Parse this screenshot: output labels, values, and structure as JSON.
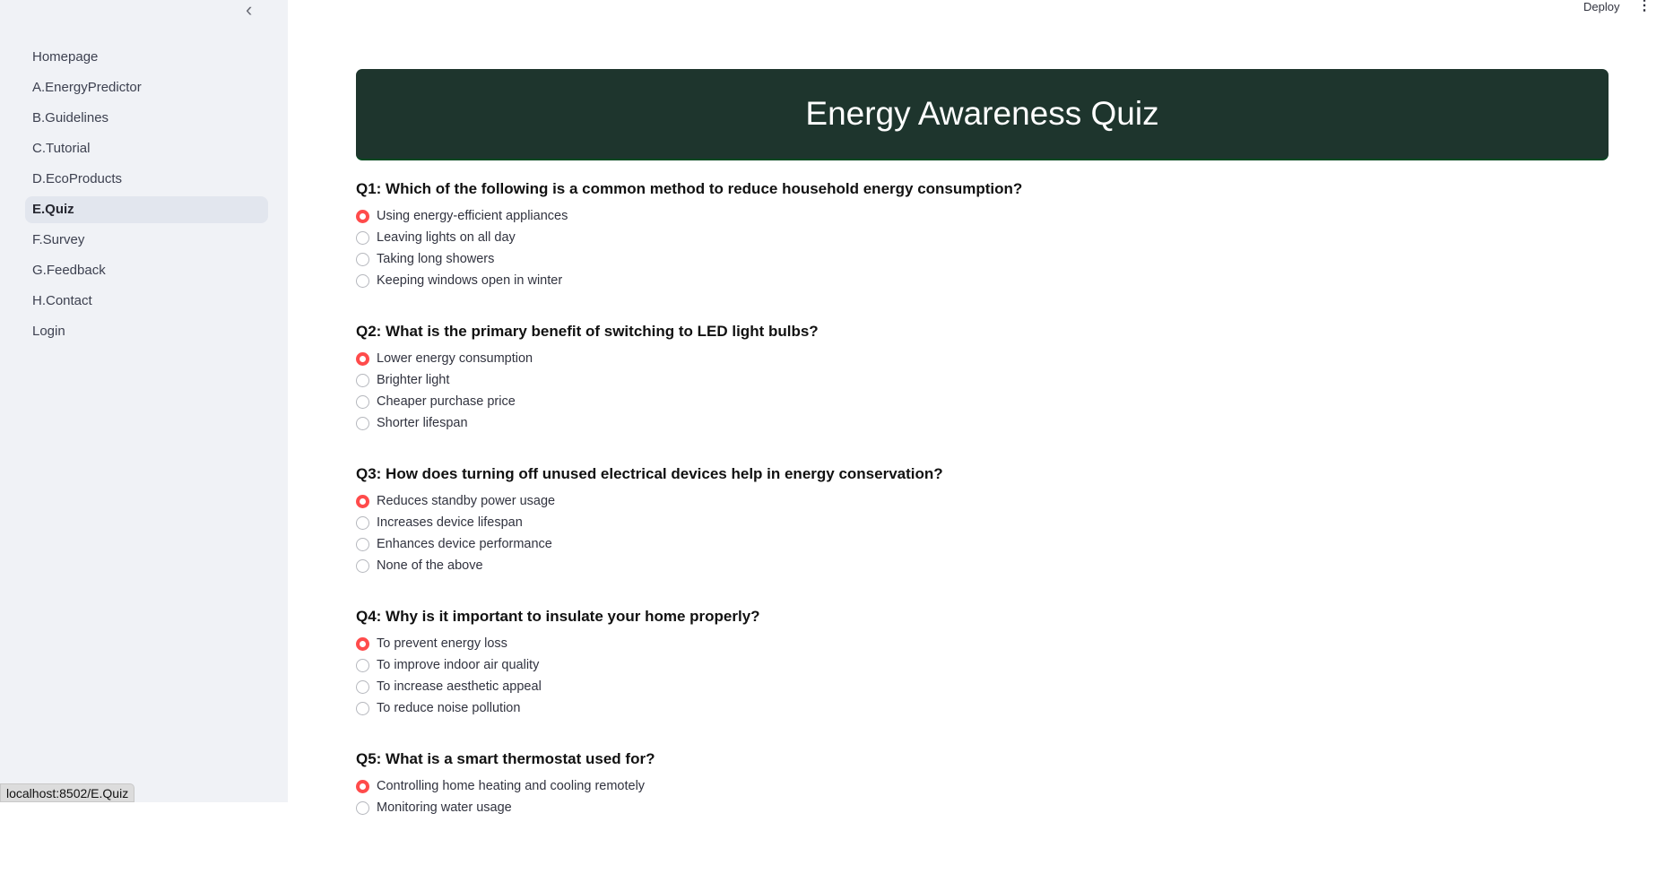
{
  "sidebar": {
    "items": [
      {
        "label": "Homepage",
        "active": false
      },
      {
        "label": "A.EnergyPredictor",
        "active": false
      },
      {
        "label": "B.Guidelines",
        "active": false
      },
      {
        "label": "C.Tutorial",
        "active": false
      },
      {
        "label": "D.EcoProducts",
        "active": false
      },
      {
        "label": "E.Quiz",
        "active": true
      },
      {
        "label": "F.Survey",
        "active": false
      },
      {
        "label": "G.Feedback",
        "active": false
      },
      {
        "label": "H.Contact",
        "active": false
      },
      {
        "label": "Login",
        "active": false
      }
    ]
  },
  "toolbar": {
    "deploy_label": "Deploy",
    "menu_icon": "vertical-ellipsis",
    "collapse_icon": "chevron-left"
  },
  "header": {
    "title": "Energy Awareness Quiz",
    "bg_color": "#1e352d"
  },
  "accent_color": "#ff4b4b",
  "questions": [
    {
      "text": "Q1: Which of the following is a common method to reduce household energy consumption?",
      "options": [
        "Using energy-efficient appliances",
        "Leaving lights on all day",
        "Taking long showers",
        "Keeping windows open in winter"
      ],
      "selected": 0
    },
    {
      "text": "Q2: What is the primary benefit of switching to LED light bulbs?",
      "options": [
        "Lower energy consumption",
        "Brighter light",
        "Cheaper purchase price",
        "Shorter lifespan"
      ],
      "selected": 0
    },
    {
      "text": "Q3: How does turning off unused electrical devices help in energy conservation?",
      "options": [
        "Reduces standby power usage",
        "Increases device lifespan",
        "Enhances device performance",
        "None of the above"
      ],
      "selected": 0
    },
    {
      "text": "Q4: Why is it important to insulate your home properly?",
      "options": [
        "To prevent energy loss",
        "To improve indoor air quality",
        "To increase aesthetic appeal",
        "To reduce noise pollution"
      ],
      "selected": 0
    },
    {
      "text": "Q5: What is a smart thermostat used for?",
      "options": [
        "Controlling home heating and cooling remotely",
        "Monitoring water usage"
      ],
      "selected": 0
    }
  ],
  "status_bar": {
    "url": "localhost:8502/E.Quiz"
  }
}
